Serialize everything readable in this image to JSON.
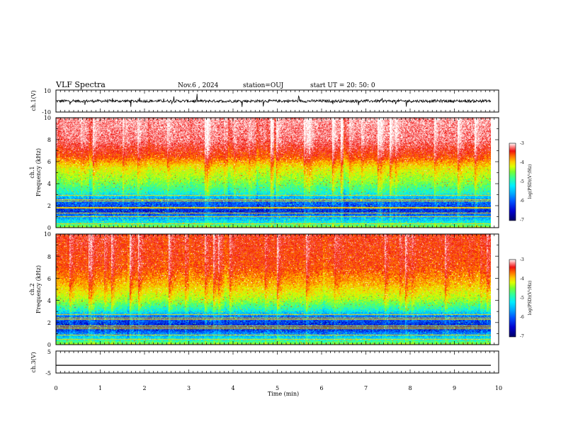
{
  "header": {
    "title": "VLF Spectra",
    "date": "Nov.6  , 2024",
    "station": "station=OUJ",
    "start": "start  UT =   20: 50: 0"
  },
  "colors": {
    "ink": "#000000",
    "colormap": [
      "#000066",
      "#0000cc",
      "#0055ff",
      "#00aaff",
      "#00eeff",
      "#33ff99",
      "#77ff33",
      "#ddff00",
      "#ffcc00",
      "#ff6600",
      "#ee1111",
      "#ff9999",
      "#ffffff"
    ]
  },
  "chart_data": [
    {
      "type": "line",
      "panel": "ch1",
      "ylabel": "ch.1(V)",
      "ylim": [
        -10,
        10
      ],
      "yticks": [
        "10",
        "-10"
      ],
      "series": [
        {
          "mean": 0,
          "noise_amplitude": 2.5,
          "spike_amplitude": 6
        }
      ]
    },
    {
      "type": "heatmap",
      "panel": "ch1-spectrogram",
      "ylabel": [
        "ch.1",
        "Frequency  (kHz)"
      ],
      "ylim": [
        0,
        10
      ],
      "yticks": [
        "0",
        "2",
        "4",
        "6",
        "8",
        "10"
      ],
      "xlim": [
        0,
        9.85
      ],
      "level_profile": [
        {
          "f": 0,
          "level": 0.55
        },
        {
          "f": 0.5,
          "level": 0.35
        },
        {
          "f": 1.5,
          "level": 0.12
        },
        {
          "f": 2.5,
          "level": 0.2
        },
        {
          "f": 3.2,
          "level": 0.38
        },
        {
          "f": 4.2,
          "level": 0.5
        },
        {
          "f": 5.5,
          "level": 0.62
        },
        {
          "f": 6.5,
          "level": 0.78
        },
        {
          "f": 8,
          "level": 0.9
        },
        {
          "f": 10,
          "level": 0.93
        }
      ],
      "colorbar": {
        "label": "log(PSD)(V²/Hz)",
        "ticks": [
          "-3",
          "-4",
          "-5",
          "-6",
          "-7"
        ],
        "range": [
          -7,
          -3
        ]
      }
    },
    {
      "type": "heatmap",
      "panel": "ch2-spectrogram",
      "ylabel": [
        "ch.2",
        "Frequency  (kHz)"
      ],
      "ylim": [
        0,
        10
      ],
      "yticks": [
        "0",
        "2",
        "4",
        "6",
        "8",
        "10"
      ],
      "xlim": [
        0,
        9.85
      ],
      "level_profile": [
        {
          "f": 0,
          "level": 0.55
        },
        {
          "f": 0.5,
          "level": 0.35
        },
        {
          "f": 1.5,
          "level": 0.1
        },
        {
          "f": 2.5,
          "level": 0.18
        },
        {
          "f": 3.2,
          "level": 0.38
        },
        {
          "f": 4.2,
          "level": 0.55
        },
        {
          "f": 5.5,
          "level": 0.68
        },
        {
          "f": 7,
          "level": 0.78
        },
        {
          "f": 10,
          "level": 0.82
        }
      ],
      "colorbar": {
        "label": "log(PSD)(V²/Hz)",
        "ticks": [
          "-3",
          "-4",
          "-5",
          "-6",
          "-7"
        ],
        "range": [
          -7,
          -3
        ]
      }
    },
    {
      "type": "line",
      "panel": "ch3",
      "ylabel": "ch.3(V)",
      "ylim": [
        -5,
        5
      ],
      "yticks": [
        "5",
        "-5"
      ],
      "series": [
        {
          "constant": -1.5
        }
      ]
    }
  ],
  "xaxis": {
    "label": "Time  (min)",
    "ticks": [
      "0",
      "1",
      "2",
      "3",
      "4",
      "5",
      "6",
      "7",
      "8",
      "9",
      "10"
    ],
    "range": [
      0,
      10
    ]
  }
}
